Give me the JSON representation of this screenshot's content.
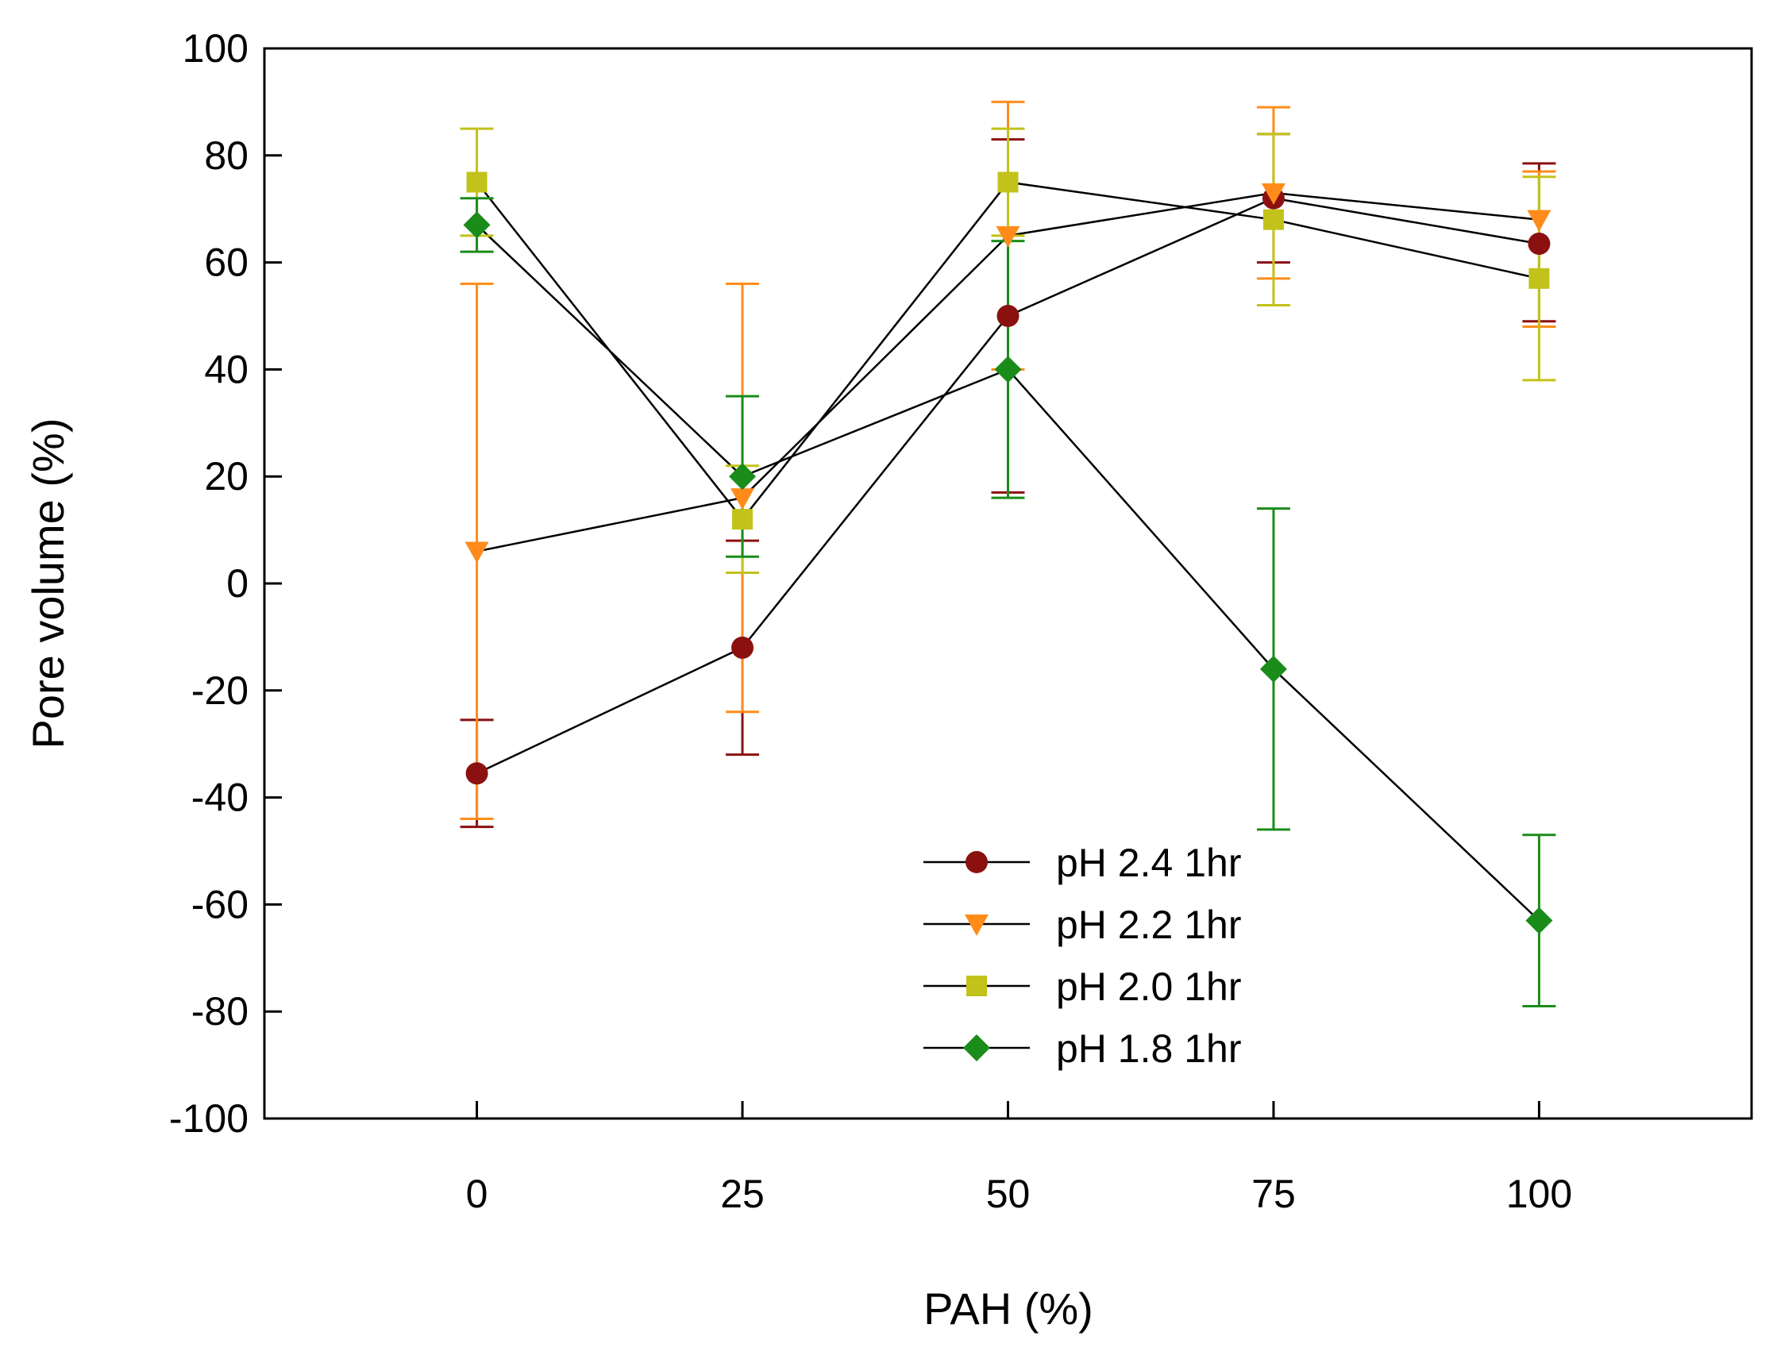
{
  "chart_data": {
    "type": "line",
    "title": "",
    "xlabel": "PAH (%)",
    "ylabel": "Pore volume (%)",
    "xlim": [
      -20,
      120
    ],
    "ylim": [
      -100,
      100
    ],
    "x": [
      0,
      25,
      50,
      75,
      100
    ],
    "xticks": [
      "0",
      "25",
      "50",
      "75",
      "100"
    ],
    "yticks": [
      "-100",
      "-80",
      "-60",
      "-40",
      "-20",
      "0",
      "20",
      "40",
      "60",
      "80",
      "100"
    ],
    "grid": false,
    "legend_position": "bottom-center",
    "series": [
      {
        "name": "pH 2.4 1hr",
        "marker": "circle",
        "color": "#8b1010",
        "values": [
          -35.5,
          -12,
          50,
          72,
          63.5
        ],
        "err_low": [
          -45.5,
          -32,
          17,
          60,
          49
        ],
        "err_high": [
          -25.5,
          8,
          83,
          84,
          78.5
        ]
      },
      {
        "name": "pH 2.2 1hr",
        "marker": "triangle-down",
        "color": "#ff8c1a",
        "values": [
          6,
          16,
          65,
          73,
          68
        ],
        "err_low": [
          -44,
          -24,
          40,
          57,
          48
        ],
        "err_high": [
          56,
          56,
          90,
          89,
          77
        ]
      },
      {
        "name": "pH 2.0 1hr",
        "marker": "square",
        "color": "#c2c21a",
        "values": [
          75,
          12,
          75,
          68,
          57
        ],
        "err_low": [
          65,
          2,
          65,
          52,
          38
        ],
        "err_high": [
          85,
          22,
          85,
          84,
          76
        ]
      },
      {
        "name": "pH 1.8 1hr",
        "marker": "diamond",
        "color": "#1a8c1a",
        "values": [
          67,
          20,
          40,
          -16,
          -63
        ],
        "err_low": [
          62,
          5,
          16,
          -46,
          -79
        ],
        "err_high": [
          72,
          35,
          64,
          14,
          -47
        ]
      }
    ]
  }
}
